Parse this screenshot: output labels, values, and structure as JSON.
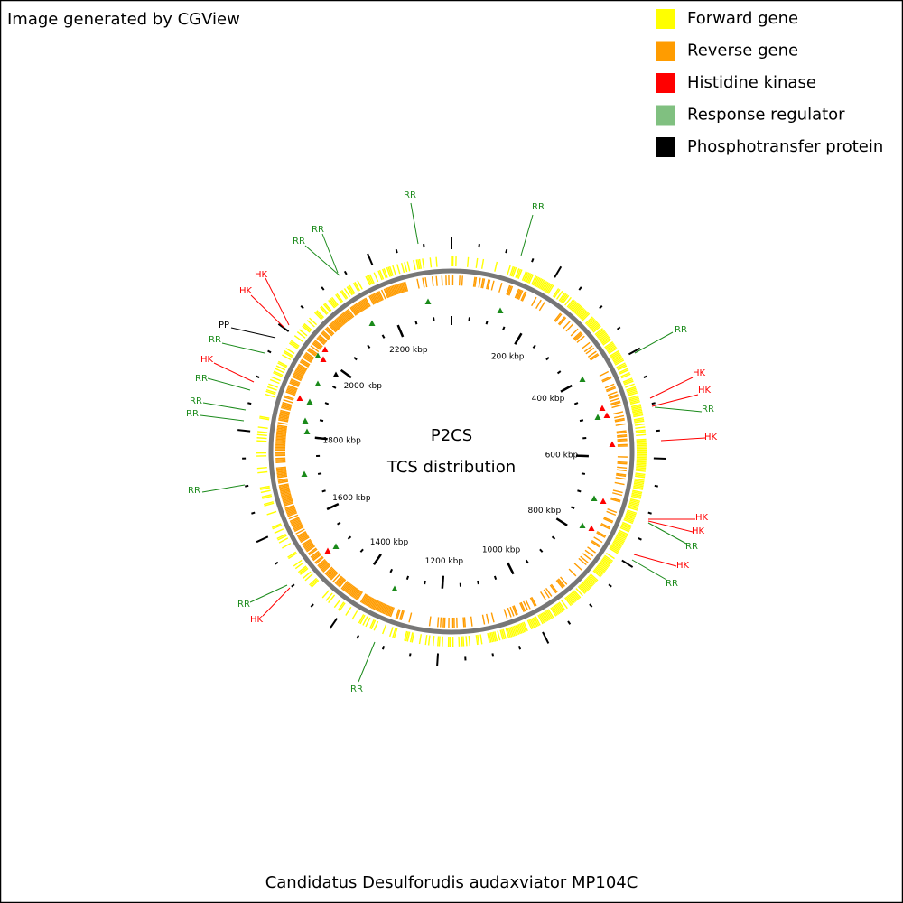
{
  "header": {
    "credit": "Image generated by CGView"
  },
  "legend": [
    {
      "label": "Forward gene",
      "color": "#ffff00"
    },
    {
      "label": "Reverse gene",
      "color": "#ff9c00"
    },
    {
      "label": "Histidine kinase",
      "color": "#ff0000"
    },
    {
      "label": "Response regulator",
      "color": "#80c080"
    },
    {
      "label": "Phosphotransfer protein",
      "color": "#000000"
    }
  ],
  "center": {
    "title": "P2CS",
    "subtitle": "TCS distribution"
  },
  "ruler": [
    {
      "value": 200,
      "label": "200 kbp"
    },
    {
      "value": 400,
      "label": "400 kbp"
    },
    {
      "value": 600,
      "label": "600 kbp"
    },
    {
      "value": 800,
      "label": "800 kbp"
    },
    {
      "value": 1000,
      "label": "1000 kbp"
    },
    {
      "value": 1200,
      "label": "1200 kbp"
    },
    {
      "value": 1400,
      "label": "1400 kbp"
    },
    {
      "value": 1600,
      "label": "1600 kbp"
    },
    {
      "value": 1800,
      "label": "1800 kbp"
    },
    {
      "value": 2000,
      "label": "2000 kbp"
    },
    {
      "value": 2200,
      "label": "2200 kbp"
    }
  ],
  "annotation_colors": {
    "RR": "#1a8a1a",
    "HK": "#ff0000",
    "PP": "#000000"
  },
  "annotations": [
    "RR",
    "RR",
    "RR",
    "HK",
    "HK",
    "RR",
    "HK",
    "HK",
    "HK",
    "RR",
    "HK",
    "RR",
    "RR",
    "HK",
    "RR",
    "RR",
    "RR",
    "RR",
    "RR",
    "HK",
    "RR",
    "PP",
    "HK",
    "HK",
    "RR",
    "RR"
  ],
  "footer": {
    "organism": "Candidatus Desulforudis audaxviator MP104C"
  }
}
